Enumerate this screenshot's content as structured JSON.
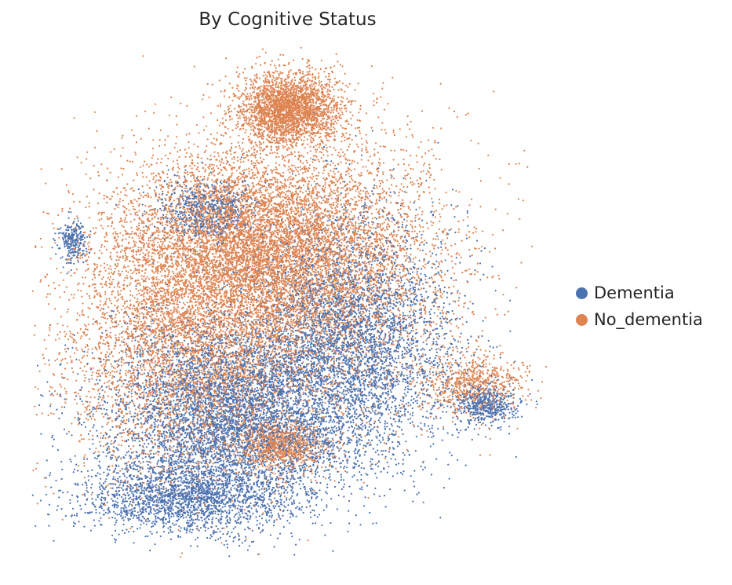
{
  "chart_data": {
    "type": "scatter",
    "title": "By Cognitive Status",
    "xlabel": "",
    "ylabel": "",
    "axes_visible": false,
    "grid": false,
    "legend_position": "right",
    "series": [
      {
        "name": "Dementia",
        "color": "#4c72b0"
      },
      {
        "name": "No_dementia",
        "color": "#dd8452"
      }
    ],
    "clusters": [
      {
        "series": "No_dementia",
        "cx": 0.5,
        "cy": 0.88,
        "sx": 0.05,
        "sy": 0.035,
        "n": 2600
      },
      {
        "series": "No_dementia",
        "cx": 0.42,
        "cy": 0.62,
        "sx": 0.13,
        "sy": 0.09,
        "n": 5200
      },
      {
        "series": "No_dementia",
        "cx": 0.3,
        "cy": 0.42,
        "sx": 0.12,
        "sy": 0.13,
        "n": 4800
      },
      {
        "series": "No_dementia",
        "cx": 0.55,
        "cy": 0.55,
        "sx": 0.14,
        "sy": 0.14,
        "n": 4200
      },
      {
        "series": "No_dementia",
        "cx": 0.48,
        "cy": 0.22,
        "sx": 0.04,
        "sy": 0.025,
        "n": 900
      },
      {
        "series": "No_dementia",
        "cx": 0.85,
        "cy": 0.34,
        "sx": 0.05,
        "sy": 0.03,
        "n": 700
      },
      {
        "series": "Dementia",
        "cx": 0.38,
        "cy": 0.28,
        "sx": 0.12,
        "sy": 0.09,
        "n": 5200
      },
      {
        "series": "Dementia",
        "cx": 0.62,
        "cy": 0.42,
        "sx": 0.1,
        "sy": 0.12,
        "n": 4200
      },
      {
        "series": "Dementia",
        "cx": 0.34,
        "cy": 0.68,
        "sx": 0.05,
        "sy": 0.03,
        "n": 700
      },
      {
        "series": "Dementia",
        "cx": 0.88,
        "cy": 0.3,
        "sx": 0.03,
        "sy": 0.02,
        "n": 500
      },
      {
        "series": "Dementia",
        "cx": 0.08,
        "cy": 0.62,
        "sx": 0.015,
        "sy": 0.02,
        "n": 250
      },
      {
        "series": "Dementia",
        "cx": 0.3,
        "cy": 0.12,
        "sx": 0.1,
        "sy": 0.035,
        "n": 2000
      }
    ]
  }
}
